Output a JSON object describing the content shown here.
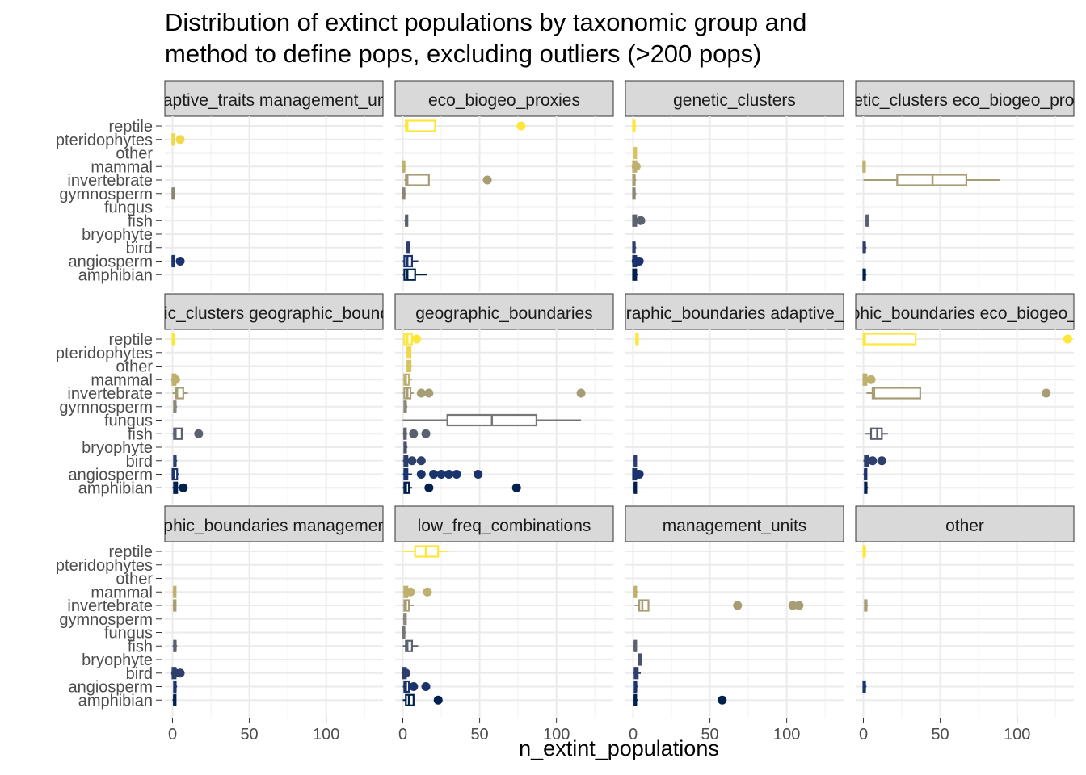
{
  "chart_data": {
    "type": "boxplot",
    "title": "Distribution of extinct populations by taxonomic group and method to define pops, excluding outliers (>200 pops)",
    "title_lines": [
      "Distribution of extinct populations by taxonomic group and",
      "method to define pops, excluding outliers (>200 pops)"
    ],
    "xlabel": "n_extint_populations",
    "ylabel": "",
    "xlim": [
      -5,
      137
    ],
    "x_ticks": [
      0,
      50,
      100
    ],
    "grid": true,
    "legend": "none",
    "categories": [
      "reptile",
      "pteridophytes",
      "other",
      "mammal",
      "invertebrate",
      "gymnosperm",
      "fungus",
      "fish",
      "bryophyte",
      "bird",
      "angiosperm",
      "amphibian"
    ],
    "colors": {
      "reptile": "#fde737",
      "pteridophytes": "#f0d84a",
      "other": "#d7c35e",
      "mammal": "#bfb06e",
      "invertebrate": "#a69d75",
      "gymnosperm": "#8a8778",
      "fungus": "#767676",
      "fish": "#5c616f",
      "bryophyte": "#48506c",
      "bird": "#2e3f6c",
      "angiosperm": "#1a336e",
      "amphibian": "#00204d"
    },
    "facets": [
      {
        "label": "adaptive_traits management_units",
        "boxes": [
          {
            "category": "pteridophytes",
            "min": 0,
            "q1": 0,
            "median": 0,
            "q3": 1,
            "max": 1,
            "outliers": [
              5
            ]
          },
          {
            "category": "gymnosperm",
            "min": 0,
            "q1": 0,
            "median": 0,
            "q3": 1,
            "max": 1,
            "outliers": []
          },
          {
            "category": "angiosperm",
            "min": 0,
            "q1": 0,
            "median": 0,
            "q3": 1,
            "max": 1,
            "outliers": [
              5
            ]
          }
        ]
      },
      {
        "label": "eco_biogeo_proxies",
        "boxes": [
          {
            "category": "reptile",
            "min": 1,
            "q1": 2,
            "median": 3,
            "q3": 21,
            "max": 21,
            "outliers": [
              77
            ]
          },
          {
            "category": "mammal",
            "min": 0,
            "q1": 0,
            "median": 1,
            "q3": 1,
            "max": 2,
            "outliers": []
          },
          {
            "category": "invertebrate",
            "min": 1,
            "q1": 2,
            "median": 3,
            "q3": 17,
            "max": 17,
            "outliers": [
              55
            ]
          },
          {
            "category": "gymnosperm",
            "min": 0,
            "q1": 0,
            "median": 1,
            "q3": 1,
            "max": 2,
            "outliers": []
          },
          {
            "category": "fish",
            "min": 1,
            "q1": 2,
            "median": 2,
            "q3": 3,
            "max": 3,
            "outliers": []
          },
          {
            "category": "bird",
            "min": 2,
            "q1": 3,
            "median": 3,
            "q3": 4,
            "max": 4,
            "outliers": []
          },
          {
            "category": "angiosperm",
            "min": 0,
            "q1": 1,
            "median": 3,
            "q3": 6,
            "max": 10,
            "outliers": []
          },
          {
            "category": "amphibian",
            "min": 0,
            "q1": 1,
            "median": 3,
            "q3": 8,
            "max": 16,
            "outliers": []
          }
        ]
      },
      {
        "label": "genetic_clusters",
        "boxes": [
          {
            "category": "reptile",
            "min": 0,
            "q1": 0,
            "median": 1,
            "q3": 1,
            "max": 2,
            "outliers": []
          },
          {
            "category": "other",
            "min": 1,
            "q1": 1,
            "median": 1,
            "q3": 2,
            "max": 2,
            "outliers": []
          },
          {
            "category": "mammal",
            "min": 0,
            "q1": 0,
            "median": 1,
            "q3": 2,
            "max": 3,
            "outliers": [
              2
            ]
          },
          {
            "category": "invertebrate",
            "min": 0,
            "q1": 0,
            "median": 1,
            "q3": 1,
            "max": 2,
            "outliers": []
          },
          {
            "category": "gymnosperm",
            "min": 0,
            "q1": 0,
            "median": 1,
            "q3": 1,
            "max": 2,
            "outliers": []
          },
          {
            "category": "fish",
            "min": 0,
            "q1": 0,
            "median": 1,
            "q3": 2,
            "max": 3,
            "outliers": [
              5
            ]
          },
          {
            "category": "bird",
            "min": 0,
            "q1": 0,
            "median": 1,
            "q3": 1,
            "max": 2,
            "outliers": []
          },
          {
            "category": "angiosperm",
            "min": 0,
            "q1": 0,
            "median": 1,
            "q3": 2,
            "max": 3,
            "outliers": [
              2,
              3,
              4
            ]
          },
          {
            "category": "amphibian",
            "min": 0,
            "q1": 0,
            "median": 1,
            "q3": 2,
            "max": 3,
            "outliers": []
          }
        ]
      },
      {
        "label": "genetic_clusters eco_biogeo_proxies",
        "boxes": [
          {
            "category": "mammal",
            "min": 0,
            "q1": 0,
            "median": 0,
            "q3": 1,
            "max": 1,
            "outliers": []
          },
          {
            "category": "invertebrate",
            "min": 0,
            "q1": 22,
            "median": 45,
            "q3": 67,
            "max": 89,
            "outliers": []
          },
          {
            "category": "fish",
            "min": 1,
            "q1": 2,
            "median": 2,
            "q3": 3,
            "max": 3,
            "outliers": []
          },
          {
            "category": "bird",
            "min": 0,
            "q1": 0,
            "median": 1,
            "q3": 1,
            "max": 2,
            "outliers": []
          },
          {
            "category": "amphibian",
            "min": 0,
            "q1": 0,
            "median": 1,
            "q3": 1,
            "max": 2,
            "outliers": []
          }
        ]
      },
      {
        "label": "genetic_clusters geographic_boundaries",
        "boxes": [
          {
            "category": "reptile",
            "min": 0,
            "q1": 0,
            "median": 1,
            "q3": 1,
            "max": 2,
            "outliers": []
          },
          {
            "category": "mammal",
            "min": 0,
            "q1": 0,
            "median": 1,
            "q3": 2,
            "max": 3,
            "outliers": [
              2
            ]
          },
          {
            "category": "invertebrate",
            "min": 0,
            "q1": 2,
            "median": 3,
            "q3": 7,
            "max": 10,
            "outliers": []
          },
          {
            "category": "gymnosperm",
            "min": 1,
            "q1": 1,
            "median": 2,
            "q3": 2,
            "max": 3,
            "outliers": []
          },
          {
            "category": "fish",
            "min": 0,
            "q1": 1,
            "median": 2,
            "q3": 6,
            "max": 6,
            "outliers": [
              17
            ]
          },
          {
            "category": "bird",
            "min": 1,
            "q1": 1,
            "median": 2,
            "q3": 2,
            "max": 3,
            "outliers": []
          },
          {
            "category": "angiosperm",
            "min": 0,
            "q1": 0,
            "median": 1,
            "q3": 3,
            "max": 4,
            "outliers": []
          },
          {
            "category": "amphibian",
            "min": 0,
            "q1": 1,
            "median": 2,
            "q3": 3,
            "max": 4,
            "outliers": [
              7
            ]
          }
        ]
      },
      {
        "label": "geographic_boundaries",
        "boxes": [
          {
            "category": "reptile",
            "min": 0,
            "q1": 1,
            "median": 3,
            "q3": 6,
            "max": 9,
            "outliers": [
              9
            ]
          },
          {
            "category": "pteridophytes",
            "min": 2,
            "q1": 3,
            "median": 4,
            "q3": 5,
            "max": 5,
            "outliers": []
          },
          {
            "category": "other",
            "min": 2,
            "q1": 3,
            "median": 4,
            "q3": 5,
            "max": 6,
            "outliers": []
          },
          {
            "category": "mammal",
            "min": 0,
            "q1": 1,
            "median": 2,
            "q3": 4,
            "max": 6,
            "outliers": []
          },
          {
            "category": "invertebrate",
            "min": 0,
            "q1": 1,
            "median": 3,
            "q3": 5,
            "max": 7,
            "outliers": [
              12,
              17,
              116
            ]
          },
          {
            "category": "gymnosperm",
            "min": 1,
            "q1": 1,
            "median": 2,
            "q3": 2,
            "max": 3,
            "outliers": []
          },
          {
            "category": "fungus",
            "min": 0,
            "q1": 29,
            "median": 58,
            "q3": 87,
            "max": 116,
            "outliers": []
          },
          {
            "category": "fish",
            "min": 0,
            "q1": 1,
            "median": 1,
            "q3": 2,
            "max": 3,
            "outliers": [
              7,
              15
            ]
          },
          {
            "category": "bryophyte",
            "min": 1,
            "q1": 1,
            "median": 2,
            "q3": 2,
            "max": 3,
            "outliers": []
          },
          {
            "category": "bird",
            "min": 0,
            "q1": 1,
            "median": 2,
            "q3": 3,
            "max": 4,
            "outliers": [
              6,
              12
            ]
          },
          {
            "category": "angiosperm",
            "min": 0,
            "q1": 1,
            "median": 2,
            "q3": 3,
            "max": 6,
            "outliers": [
              12,
              20,
              25,
              30,
              35,
              49
            ]
          },
          {
            "category": "amphibian",
            "min": 0,
            "q1": 1,
            "median": 2,
            "q3": 4,
            "max": 6,
            "outliers": [
              17,
              74
            ]
          }
        ]
      },
      {
        "label": "geographic_boundaries adaptive_traits",
        "boxes": [
          {
            "category": "reptile",
            "min": 2,
            "q1": 2,
            "median": 3,
            "q3": 3,
            "max": 4,
            "outliers": []
          },
          {
            "category": "bird",
            "min": 0,
            "q1": 1,
            "median": 1,
            "q3": 2,
            "max": 2,
            "outliers": []
          },
          {
            "category": "angiosperm",
            "min": 0,
            "q1": 0,
            "median": 1,
            "q3": 2,
            "max": 3,
            "outliers": [
              3,
              4
            ]
          },
          {
            "category": "amphibian",
            "min": 0,
            "q1": 1,
            "median": 1,
            "q3": 2,
            "max": 2,
            "outliers": []
          }
        ]
      },
      {
        "label": "geographic_boundaries eco_biogeo_proxies",
        "boxes": [
          {
            "category": "reptile",
            "min": 0,
            "q1": 0,
            "median": 1,
            "q3": 34,
            "max": 34,
            "outliers": [
              133
            ]
          },
          {
            "category": "mammal",
            "min": 0,
            "q1": 0,
            "median": 1,
            "q3": 2,
            "max": 3,
            "outliers": [
              5
            ]
          },
          {
            "category": "invertebrate",
            "min": 2,
            "q1": 6,
            "median": 7,
            "q3": 37,
            "max": 37,
            "outliers": [
              119
            ]
          },
          {
            "category": "fish",
            "min": 1,
            "q1": 5,
            "median": 9,
            "q3": 12,
            "max": 16,
            "outliers": []
          },
          {
            "category": "bird",
            "min": 0,
            "q1": 1,
            "median": 2,
            "q3": 3,
            "max": 4,
            "outliers": [
              6,
              12
            ]
          },
          {
            "category": "angiosperm",
            "min": 0,
            "q1": 1,
            "median": 1,
            "q3": 2,
            "max": 2,
            "outliers": []
          },
          {
            "category": "amphibian",
            "min": 1,
            "q1": 1,
            "median": 2,
            "q3": 2,
            "max": 3,
            "outliers": []
          }
        ]
      },
      {
        "label": "geographic_boundaries management_units",
        "boxes": [
          {
            "category": "mammal",
            "min": 0,
            "q1": 1,
            "median": 1,
            "q3": 2,
            "max": 2,
            "outliers": []
          },
          {
            "category": "invertebrate",
            "min": 0,
            "q1": 1,
            "median": 1,
            "q3": 2,
            "max": 2,
            "outliers": []
          },
          {
            "category": "fish",
            "min": 0,
            "q1": 1,
            "median": 2,
            "q3": 2,
            "max": 3,
            "outliers": []
          },
          {
            "category": "bird",
            "min": 0,
            "q1": 0,
            "median": 1,
            "q3": 2,
            "max": 3,
            "outliers": [
              2,
              5
            ]
          },
          {
            "category": "angiosperm",
            "min": 1,
            "q1": 1,
            "median": 2,
            "q3": 2,
            "max": 3,
            "outliers": []
          },
          {
            "category": "amphibian",
            "min": 0,
            "q1": 1,
            "median": 1,
            "q3": 2,
            "max": 2,
            "outliers": []
          }
        ]
      },
      {
        "label": "low_freq_combinations",
        "boxes": [
          {
            "category": "reptile",
            "min": 0,
            "q1": 8,
            "median": 15,
            "q3": 23,
            "max": 30,
            "outliers": []
          },
          {
            "category": "mammal",
            "min": 0,
            "q1": 1,
            "median": 2,
            "q3": 3,
            "max": 4,
            "outliers": [
              5,
              16
            ]
          },
          {
            "category": "invertebrate",
            "min": 0,
            "q1": 1,
            "median": 2,
            "q3": 4,
            "max": 7,
            "outliers": []
          },
          {
            "category": "gymnosperm",
            "min": 0,
            "q1": 1,
            "median": 1,
            "q3": 2,
            "max": 2,
            "outliers": []
          },
          {
            "category": "fungus",
            "min": 0,
            "q1": 0,
            "median": 1,
            "q3": 1,
            "max": 2,
            "outliers": []
          },
          {
            "category": "fish",
            "min": 0,
            "q1": 2,
            "median": 3,
            "q3": 6,
            "max": 10,
            "outliers": []
          },
          {
            "category": "bird",
            "min": 0,
            "q1": 0,
            "median": 1,
            "q3": 2,
            "max": 3,
            "outliers": [
              2
            ]
          },
          {
            "category": "angiosperm",
            "min": 0,
            "q1": 1,
            "median": 2,
            "q3": 4,
            "max": 6,
            "outliers": [
              7,
              15
            ]
          },
          {
            "category": "amphibian",
            "min": 0,
            "q1": 2,
            "median": 4,
            "q3": 7,
            "max": 7,
            "outliers": [
              23
            ]
          }
        ]
      },
      {
        "label": "management_units",
        "boxes": [
          {
            "category": "mammal",
            "min": 0,
            "q1": 1,
            "median": 1,
            "q3": 2,
            "max": 3,
            "outliers": []
          },
          {
            "category": "invertebrate",
            "min": 1,
            "q1": 4,
            "median": 6,
            "q3": 10,
            "max": 10,
            "outliers": [
              68,
              104,
              108
            ]
          },
          {
            "category": "fish",
            "min": 0,
            "q1": 1,
            "median": 1,
            "q3": 2,
            "max": 2,
            "outliers": []
          },
          {
            "category": "bryophyte",
            "min": 4,
            "q1": 4,
            "median": 5,
            "q3": 5,
            "max": 6,
            "outliers": []
          },
          {
            "category": "bird",
            "min": 0,
            "q1": 1,
            "median": 2,
            "q3": 3,
            "max": 5,
            "outliers": []
          },
          {
            "category": "angiosperm",
            "min": 1,
            "q1": 1,
            "median": 2,
            "q3": 2,
            "max": 3,
            "outliers": []
          },
          {
            "category": "amphibian",
            "min": 0,
            "q1": 1,
            "median": 1,
            "q3": 2,
            "max": 3,
            "outliers": [
              58
            ]
          }
        ]
      },
      {
        "label": "other",
        "boxes": [
          {
            "category": "reptile",
            "min": 0,
            "q1": 0,
            "median": 1,
            "q3": 1,
            "max": 2,
            "outliers": []
          },
          {
            "category": "invertebrate",
            "min": 1,
            "q1": 1,
            "median": 2,
            "q3": 2,
            "max": 3,
            "outliers": []
          },
          {
            "category": "angiosperm",
            "min": 0,
            "q1": 0,
            "median": 1,
            "q3": 1,
            "max": 2,
            "outliers": []
          }
        ]
      }
    ]
  }
}
